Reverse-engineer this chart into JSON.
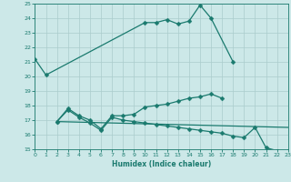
{
  "xlabel": "Humidex (Indice chaleur)",
  "bg_color": "#cce8e8",
  "line_color": "#1a7a6e",
  "grid_color": "#aacccc",
  "xlim": [
    0,
    23
  ],
  "ylim": [
    15,
    25
  ],
  "xticks": [
    0,
    1,
    2,
    3,
    4,
    5,
    6,
    7,
    8,
    9,
    10,
    11,
    12,
    13,
    14,
    15,
    16,
    17,
    18,
    19,
    20,
    21,
    22,
    23
  ],
  "yticks": [
    15,
    16,
    17,
    18,
    19,
    20,
    21,
    22,
    23,
    24,
    25
  ],
  "curve1_x": [
    0,
    1,
    10,
    11,
    12,
    13,
    14,
    15,
    16,
    18
  ],
  "curve1_y": [
    21.2,
    20.1,
    23.7,
    23.7,
    23.9,
    23.6,
    23.8,
    24.9,
    24.0,
    21.0
  ],
  "curve2_x": [
    2,
    3,
    4,
    5,
    6,
    7,
    8,
    9,
    10,
    11,
    12,
    13,
    14,
    15,
    16,
    17
  ],
  "curve2_y": [
    16.9,
    17.8,
    17.3,
    17.0,
    16.4,
    17.3,
    17.3,
    17.4,
    17.9,
    18.0,
    18.1,
    18.3,
    18.5,
    18.6,
    18.8,
    18.5
  ],
  "curve3_x": [
    2,
    3,
    4,
    5,
    6,
    7,
    8,
    9,
    10,
    11,
    12,
    13,
    14,
    15,
    16,
    17,
    18,
    19,
    20,
    21,
    22,
    23
  ],
  "curve3_y": [
    16.9,
    17.7,
    17.2,
    16.8,
    16.3,
    17.2,
    17.0,
    16.9,
    16.8,
    16.7,
    16.6,
    16.5,
    16.4,
    16.3,
    16.2,
    16.1,
    15.9,
    15.8,
    16.5,
    15.1,
    14.9,
    14.9
  ],
  "curve4_x": [
    2,
    23
  ],
  "curve4_y": [
    16.9,
    16.5
  ]
}
